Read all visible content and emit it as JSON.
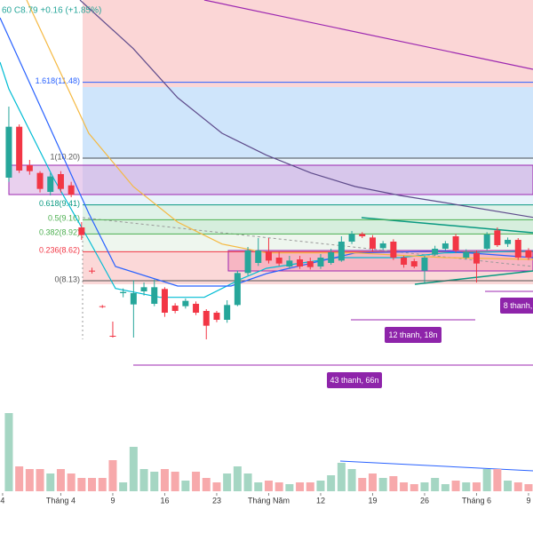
{
  "header": {
    "text": "60 C8.79 +0.16 (+1.85%)"
  },
  "chart_data": {
    "type": "candlestick",
    "xlim": [
      -0.85,
      50.43
    ],
    "ylim": [
      6.27,
      12.87
    ],
    "xticks": [
      {
        "value": -0.6,
        "label": "4"
      },
      {
        "value": 5,
        "label": "Tháng 4"
      },
      {
        "value": 10,
        "label": "9"
      },
      {
        "value": 15,
        "label": "16"
      },
      {
        "value": 20,
        "label": "23"
      },
      {
        "value": 25,
        "label": "Tháng Năm"
      },
      {
        "value": 30,
        "label": "12"
      },
      {
        "value": 35,
        "label": "19"
      },
      {
        "value": 40,
        "label": "26"
      },
      {
        "value": 45,
        "label": "Tháng 6"
      },
      {
        "value": 50,
        "label": "9"
      }
    ],
    "up_color": "#26a69a",
    "down_color": "#f23645",
    "open": [
      9.87,
      10.73,
      10.08,
      9.95,
      9.63,
      9.93,
      9.74,
      9.03,
      8.3,
      7.7,
      7.2,
      7.92,
      7.73,
      7.95,
      7.74,
      7.99,
      7.71,
      7.7,
      7.74,
      7.62,
      7.59,
      7.47,
      7.72,
      8.26,
      8.43,
      8.62,
      8.52,
      8.37,
      8.49,
      8.46,
      8.37,
      8.43,
      8.47,
      8.79,
      8.92,
      8.86,
      8.68,
      8.79,
      8.52,
      8.46,
      8.3,
      8.57,
      8.67,
      8.88,
      8.52,
      8.6,
      8.67,
      8.98,
      8.75,
      8.82,
      8.64
    ],
    "high": [
      11.07,
      10.77,
      10.17,
      9.98,
      9.95,
      9.98,
      9.8,
      9.12,
      8.35,
      7.72,
      7.44,
      8.0,
      8.14,
      8.1,
      8.15,
      8.02,
      7.75,
      7.83,
      7.78,
      7.65,
      7.62,
      7.8,
      8.3,
      8.7,
      8.85,
      8.85,
      8.62,
      8.55,
      8.55,
      8.52,
      8.58,
      8.67,
      8.88,
      8.97,
      8.95,
      8.9,
      8.8,
      8.83,
      8.55,
      8.5,
      8.55,
      8.72,
      8.8,
      8.92,
      8.66,
      8.64,
      8.95,
      9.03,
      8.86,
      8.85,
      8.68
    ],
    "low": [
      9.8,
      9.95,
      9.92,
      9.62,
      9.57,
      9.62,
      9.54,
      8.82,
      8.25,
      7.67,
      7.17,
      7.85,
      7.17,
      7.88,
      7.7,
      7.52,
      7.58,
      7.66,
      7.55,
      7.14,
      7.43,
      7.42,
      7.7,
      8.22,
      8.38,
      8.42,
      8.38,
      8.33,
      8.33,
      8.32,
      8.33,
      8.4,
      8.45,
      8.75,
      8.85,
      8.62,
      8.65,
      8.48,
      8.35,
      8.34,
      8.1,
      8.55,
      8.64,
      8.6,
      8.49,
      8.1,
      8.64,
      8.7,
      8.7,
      8.48,
      8.48
    ],
    "close": [
      10.73,
      9.99,
      9.98,
      9.68,
      9.89,
      9.68,
      9.58,
      8.9,
      8.29,
      7.69,
      7.19,
      7.94,
      7.92,
      8.02,
      8.02,
      7.59,
      7.62,
      7.79,
      7.59,
      7.37,
      7.47,
      7.72,
      8.26,
      8.64,
      8.64,
      8.47,
      8.42,
      8.47,
      8.37,
      8.36,
      8.52,
      8.61,
      8.79,
      8.92,
      8.88,
      8.67,
      8.76,
      8.52,
      8.4,
      8.37,
      8.52,
      8.67,
      8.76,
      8.64,
      8.62,
      8.42,
      8.91,
      8.73,
      8.82,
      8.52,
      8.52
    ],
    "volume": {
      "values": [
        88,
        28,
        25,
        25,
        20,
        25,
        20,
        15,
        15,
        15,
        35,
        10,
        50,
        25,
        22,
        25,
        22,
        12,
        22,
        15,
        10,
        20,
        28,
        20,
        10,
        12,
        10,
        8,
        10,
        10,
        12,
        18,
        32,
        25,
        15,
        20,
        15,
        17,
        10,
        8,
        10,
        15,
        8,
        12,
        10,
        10,
        25,
        25,
        12,
        10,
        8
      ],
      "ylim": [
        0,
        113
      ],
      "up_color": "#a5d6c3",
      "down_color": "#f7a9ab"
    },
    "lines": [
      {
        "color": "#00bcd4",
        "x": [
          -0.85,
          0,
          4.27,
          7.69,
          10.26,
          14.53,
          18.8,
          22.22,
          24.79,
          31.62,
          37.61,
          41.88,
          50.43
        ],
        "values": [
          11.82,
          11.37,
          9.87,
          8.82,
          8.0,
          7.85,
          7.85,
          8.15,
          8.34,
          8.52,
          8.52,
          8.6,
          8.63
        ]
      },
      {
        "color": "#2962ff",
        "x": [
          -0.85,
          3.42,
          7.69,
          10.26,
          16.24,
          21.37,
          24.79,
          33.33,
          41.88,
          50.43
        ],
        "values": [
          12.57,
          10.92,
          9.27,
          8.37,
          8.04,
          8.04,
          8.25,
          8.6,
          8.63,
          8.52
        ]
      },
      {
        "color": "#f5b942",
        "x": [
          1.71,
          7.69,
          11.97,
          16.24,
          20.51,
          24.79,
          33.33,
          41.88,
          50.43
        ],
        "values": [
          12.87,
          10.62,
          9.72,
          9.12,
          8.75,
          8.6,
          8.6,
          8.52,
          8.49
        ]
      },
      {
        "color": "#5e4b8b",
        "x": [
          6.84,
          11.97,
          16.24,
          20.51,
          24.79,
          29.06,
          33.33,
          37.61,
          41.88,
          50.43
        ],
        "values": [
          12.87,
          12.05,
          11.22,
          10.62,
          10.25,
          9.95,
          9.72,
          9.57,
          9.45,
          9.2
        ]
      },
      {
        "color": "#9c27b0",
        "x": [
          18.8,
          50.43
        ],
        "values": [
          12.87,
          11.7
        ]
      }
    ],
    "fib_levels": [
      {
        "value": 11.48,
        "label": "1.618(11.48)",
        "color": "#2962ff"
      },
      {
        "value": 10.2,
        "label": "1(10.20)",
        "color": "#555555"
      },
      {
        "value": 9.41,
        "label": "0.618(9.41)",
        "color": "#089981"
      },
      {
        "value": 9.16,
        "label": "0.5(9.16)",
        "color": "#4caf50"
      },
      {
        "value": 8.92,
        "label": "0.382(8.92)",
        "color": "#4caf50"
      },
      {
        "value": 8.62,
        "label": "0.236(8.62)",
        "color": "#f23645"
      },
      {
        "value": 8.13,
        "label": "0(8.13)",
        "color": "#555555"
      }
    ],
    "annotations": [
      {
        "text": "12 thanh, 18n"
      },
      {
        "text": "43 thanh, 66n"
      },
      {
        "text": "8 thanh,"
      }
    ]
  }
}
